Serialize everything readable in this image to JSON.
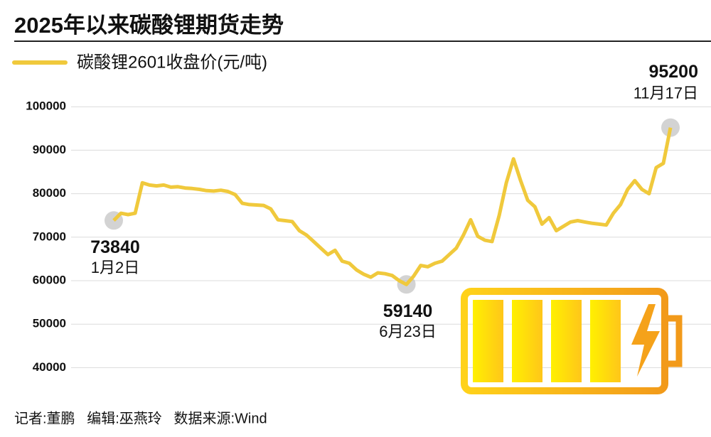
{
  "chart_data": {
    "type": "line",
    "title": "2025年以来碳酸锂期货走势",
    "source": "记者:董鹏   编辑:巫燕玲   数据来源:Wind",
    "ylim": [
      35000,
      110000
    ],
    "yticks": [
      40000,
      50000,
      60000,
      70000,
      80000,
      90000,
      100000
    ],
    "grid": true,
    "categories": [
      "1月2日",
      null,
      null,
      null,
      null,
      null,
      null,
      null,
      null,
      null,
      null,
      null,
      null,
      null,
      null,
      null,
      null,
      null,
      null,
      null,
      null,
      null,
      null,
      null,
      null,
      null,
      null,
      null,
      null,
      null,
      null,
      null,
      null,
      null,
      null,
      null,
      null,
      null,
      null,
      null,
      null,
      "6月23日",
      null,
      null,
      null,
      null,
      null,
      null,
      null,
      null,
      null,
      null,
      null,
      null,
      null,
      null,
      null,
      null,
      null,
      null,
      null,
      null,
      null,
      null,
      null,
      null,
      null,
      null,
      null,
      null,
      null,
      null,
      null,
      null,
      null,
      null,
      null,
      null,
      "11月17日"
    ],
    "series": [
      {
        "name": "碳酸锂2601收盘价(元/吨)",
        "color": "#f0c93c",
        "values": [
          73840,
          75500,
          75200,
          75500,
          82500,
          82000,
          81800,
          82000,
          81500,
          81600,
          81300,
          81200,
          81000,
          80700,
          80600,
          80800,
          80500,
          79800,
          77800,
          77500,
          77400,
          77300,
          76500,
          74000,
          73800,
          73600,
          71500,
          70500,
          69000,
          67500,
          66000,
          67000,
          64500,
          64000,
          62500,
          61500,
          60800,
          61800,
          61600,
          61200,
          60000,
          59140,
          61000,
          63500,
          63200,
          64000,
          64500,
          66000,
          67500,
          70500,
          74000,
          70200,
          69300,
          69000,
          75000,
          82500,
          88000,
          83000,
          78500,
          77000,
          73000,
          74500,
          71500,
          72500,
          73500,
          73800,
          73500,
          73200,
          73000,
          72800,
          75500,
          77500,
          81000,
          83000,
          81000,
          80000,
          86000,
          87000,
          95200
        ]
      }
    ]
  }
}
